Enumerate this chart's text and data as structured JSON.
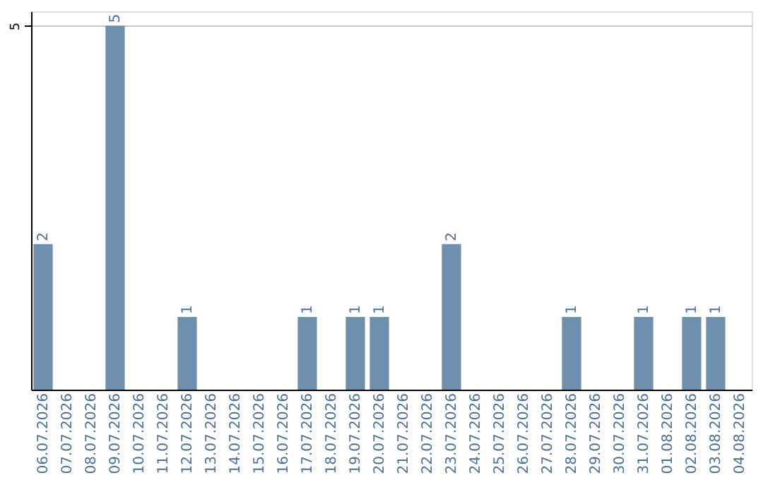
{
  "chart_data": {
    "type": "bar",
    "categories": [
      "06.07.2026",
      "07.07.2026",
      "08.07.2026",
      "09.07.2026",
      "10.07.2026",
      "11.07.2026",
      "12.07.2026",
      "13.07.2026",
      "14.07.2026",
      "15.07.2026",
      "16.07.2026",
      "17.07.2026",
      "18.07.2026",
      "19.07.2026",
      "20.07.2026",
      "21.07.2026",
      "22.07.2026",
      "23.07.2026",
      "24.07.2026",
      "25.07.2026",
      "26.07.2026",
      "27.07.2026",
      "28.07.2026",
      "29.07.2026",
      "30.07.2026",
      "31.07.2026",
      "01.08.2026",
      "02.08.2026",
      "03.08.2026",
      "04.08.2026"
    ],
    "values": [
      2,
      0,
      0,
      5,
      0,
      0,
      1,
      0,
      0,
      0,
      0,
      1,
      0,
      1,
      1,
      0,
      0,
      2,
      0,
      0,
      0,
      0,
      1,
      0,
      0,
      1,
      0,
      1,
      1,
      0
    ],
    "value_labels": [
      "2",
      null,
      null,
      "5",
      null,
      null,
      "1",
      null,
      null,
      null,
      null,
      "1",
      null,
      "1",
      "1",
      null,
      null,
      "2",
      null,
      null,
      null,
      null,
      "1",
      null,
      null,
      "1",
      null,
      "1",
      "1",
      null
    ],
    "color": "#6f8fae",
    "ylim": [
      0,
      5.2
    ],
    "yticks": [
      5
    ],
    "grid": "y"
  }
}
